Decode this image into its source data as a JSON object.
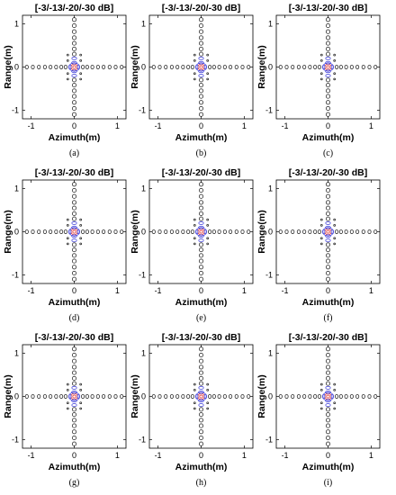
{
  "chart_data": [
    {
      "type": "contour",
      "label": "(a)",
      "title": "[-3/-13/-20/-30 dB]",
      "xlabel": "Azimuth(m)",
      "ylabel": "Range(m)",
      "xlim": [
        -1.2,
        1.2
      ],
      "ylim": [
        -1.2,
        1.2
      ],
      "xticks": [
        -1,
        0,
        1
      ],
      "yticks": [
        -1,
        0,
        1
      ],
      "levels_db": [
        -3,
        -13,
        -20,
        -30
      ],
      "level_colors": [
        "#e0201b",
        "#e0201b",
        "#3a3ad8",
        "#222222"
      ]
    },
    {
      "type": "contour",
      "label": "(b)",
      "title": "[-3/-13/-20/-30 dB]",
      "xlabel": "Azimuth(m)",
      "ylabel": "Range(m)",
      "xlim": [
        -1.2,
        1.2
      ],
      "ylim": [
        -1.2,
        1.2
      ],
      "xticks": [
        -1,
        0,
        1
      ],
      "yticks": [
        -1,
        0,
        1
      ],
      "levels_db": [
        -3,
        -13,
        -20,
        -30
      ],
      "level_colors": [
        "#e0201b",
        "#e0201b",
        "#3a3ad8",
        "#222222"
      ]
    },
    {
      "type": "contour",
      "label": "(c)",
      "title": "[-3/-13/-20/-30 dB]",
      "xlabel": "Azimuth(m)",
      "ylabel": "Range(m)",
      "xlim": [
        -1.2,
        1.2
      ],
      "ylim": [
        -1.2,
        1.2
      ],
      "xticks": [
        -1,
        0,
        1
      ],
      "yticks": [
        -1,
        0,
        1
      ],
      "levels_db": [
        -3,
        -13,
        -20,
        -30
      ],
      "level_colors": [
        "#e0201b",
        "#e0201b",
        "#3a3ad8",
        "#222222"
      ]
    },
    {
      "type": "contour",
      "label": "(d)",
      "title": "[-3/-13/-20/-30 dB]",
      "xlabel": "Azimuth(m)",
      "ylabel": "Range(m)",
      "xlim": [
        -1.2,
        1.2
      ],
      "ylim": [
        -1.2,
        1.2
      ],
      "xticks": [
        -1,
        0,
        1
      ],
      "yticks": [
        -1,
        0,
        1
      ],
      "levels_db": [
        -3,
        -13,
        -20,
        -30
      ],
      "level_colors": [
        "#e0201b",
        "#e0201b",
        "#3a3ad8",
        "#222222"
      ]
    },
    {
      "type": "contour",
      "label": "(e)",
      "title": "[-3/-13/-20/-30 dB]",
      "xlabel": "Azimuth(m)",
      "ylabel": "Range(m)",
      "xlim": [
        -1.2,
        1.2
      ],
      "ylim": [
        -1.2,
        1.2
      ],
      "xticks": [
        -1,
        0,
        1
      ],
      "yticks": [
        -1,
        0,
        1
      ],
      "levels_db": [
        -3,
        -13,
        -20,
        -30
      ],
      "level_colors": [
        "#e0201b",
        "#e0201b",
        "#3a3ad8",
        "#222222"
      ]
    },
    {
      "type": "contour",
      "label": "(f)",
      "title": "[-3/-13/-20/-30 dB]",
      "xlabel": "Azimuth(m)",
      "ylabel": "Range(m)",
      "xlim": [
        -1.2,
        1.2
      ],
      "ylim": [
        -1.2,
        1.2
      ],
      "xticks": [
        -1,
        0,
        1
      ],
      "yticks": [
        -1,
        0,
        1
      ],
      "levels_db": [
        -3,
        -13,
        -20,
        -30
      ],
      "level_colors": [
        "#e0201b",
        "#e0201b",
        "#3a3ad8",
        "#222222"
      ]
    },
    {
      "type": "contour",
      "label": "(g)",
      "title": "[-3/-13/-20/-30 dB]",
      "xlabel": "Azimuth(m)",
      "ylabel": "Range(m)",
      "xlim": [
        -1.2,
        1.2
      ],
      "ylim": [
        -1.2,
        1.2
      ],
      "xticks": [
        -1,
        0,
        1
      ],
      "yticks": [
        -1,
        0,
        1
      ],
      "levels_db": [
        -3,
        -13,
        -20,
        -30
      ],
      "level_colors": [
        "#e0201b",
        "#e0201b",
        "#3a3ad8",
        "#222222"
      ]
    },
    {
      "type": "contour",
      "label": "(h)",
      "title": "[-3/-13/-20/-30 dB]",
      "xlabel": "Azimuth(m)",
      "ylabel": "Range(m)",
      "xlim": [
        -1.2,
        1.2
      ],
      "ylim": [
        -1.2,
        1.2
      ],
      "xticks": [
        -1,
        0,
        1
      ],
      "yticks": [
        -1,
        0,
        1
      ],
      "levels_db": [
        -3,
        -13,
        -20,
        -30
      ],
      "level_colors": [
        "#e0201b",
        "#e0201b",
        "#3a3ad8",
        "#222222"
      ]
    },
    {
      "type": "contour",
      "label": "(i)",
      "title": "[-3/-13/-20/-30 dB]",
      "xlabel": "Azimuth(m)",
      "ylabel": "Range(m)",
      "xlim": [
        -1.2,
        1.2
      ],
      "ylim": [
        -1.2,
        1.2
      ],
      "xticks": [
        -1,
        0,
        1
      ],
      "yticks": [
        -1,
        0,
        1
      ],
      "levels_db": [
        -3,
        -13,
        -20,
        -30
      ],
      "level_colors": [
        "#e0201b",
        "#e0201b",
        "#3a3ad8",
        "#222222"
      ]
    }
  ]
}
